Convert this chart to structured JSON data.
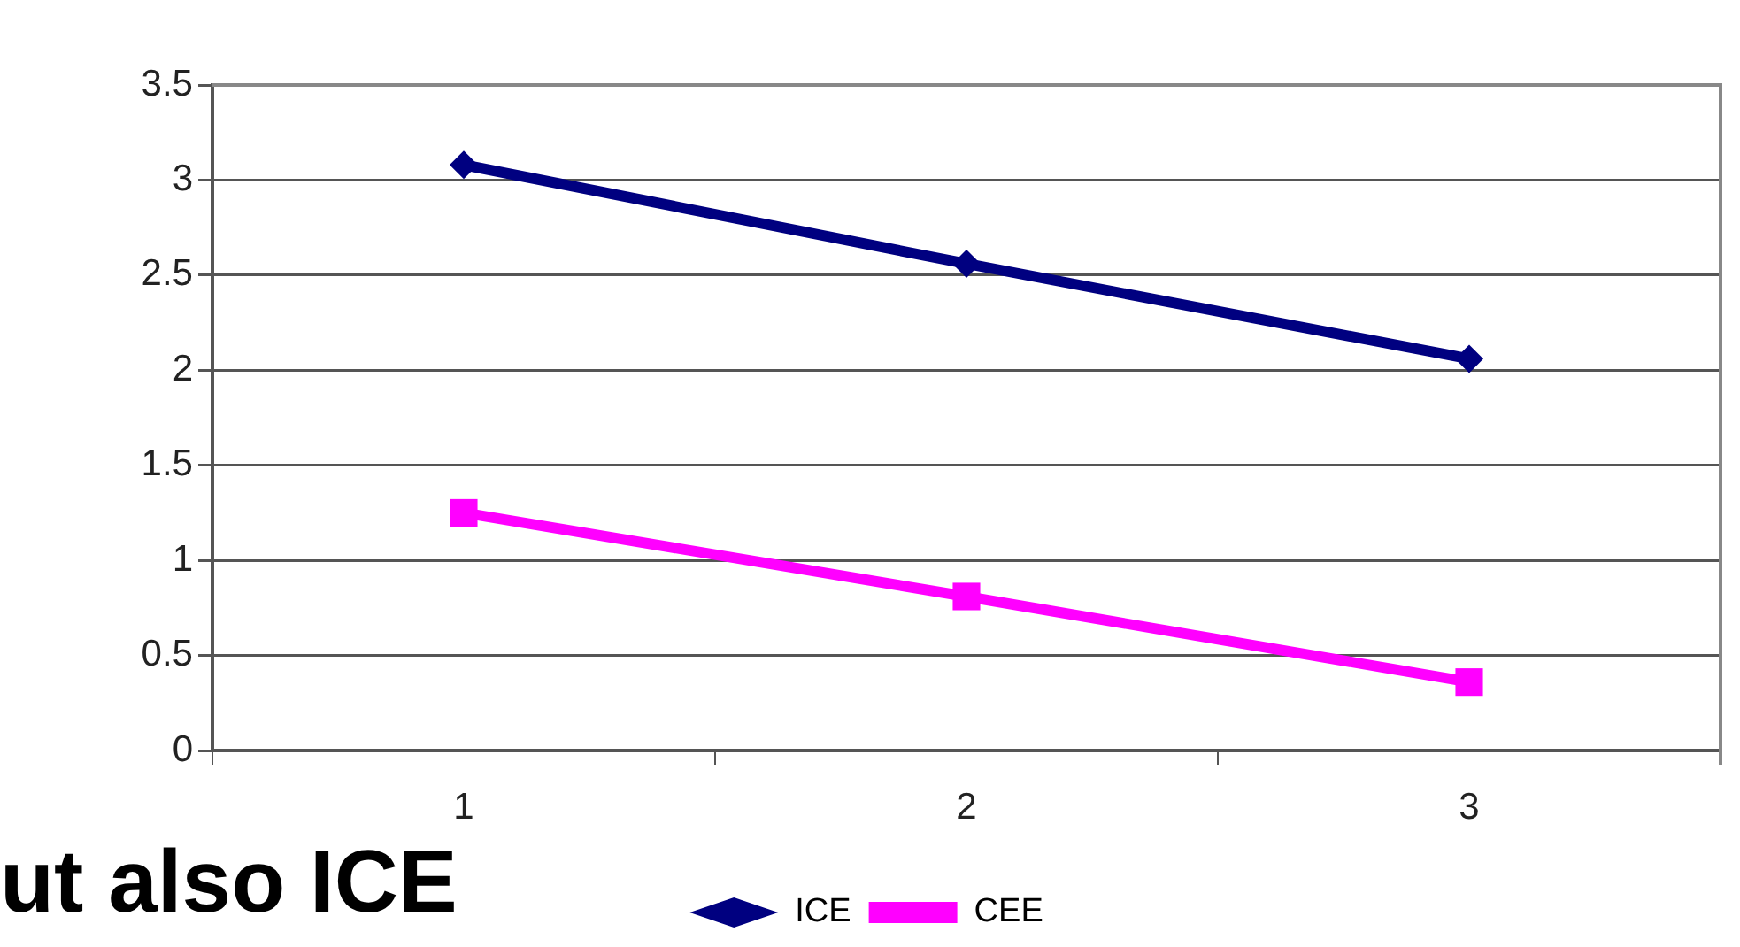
{
  "chart_data": {
    "type": "line",
    "categories": [
      "1",
      "2",
      "3"
    ],
    "series": [
      {
        "name": "ICE",
        "color": "#000080",
        "marker": "diamond",
        "values": [
          3.08,
          2.56,
          2.06
        ]
      },
      {
        "name": "CEE",
        "color": "#ff00ff",
        "marker": "square",
        "values": [
          1.25,
          0.81,
          0.36
        ]
      }
    ],
    "ylim": [
      0,
      3.5
    ],
    "yticks": [
      0,
      0.5,
      1,
      1.5,
      2,
      2.5,
      3,
      3.5
    ],
    "grid": "y",
    "legend": "bottom",
    "line_style": "solid",
    "annotations": [
      "ut also ICE"
    ]
  }
}
